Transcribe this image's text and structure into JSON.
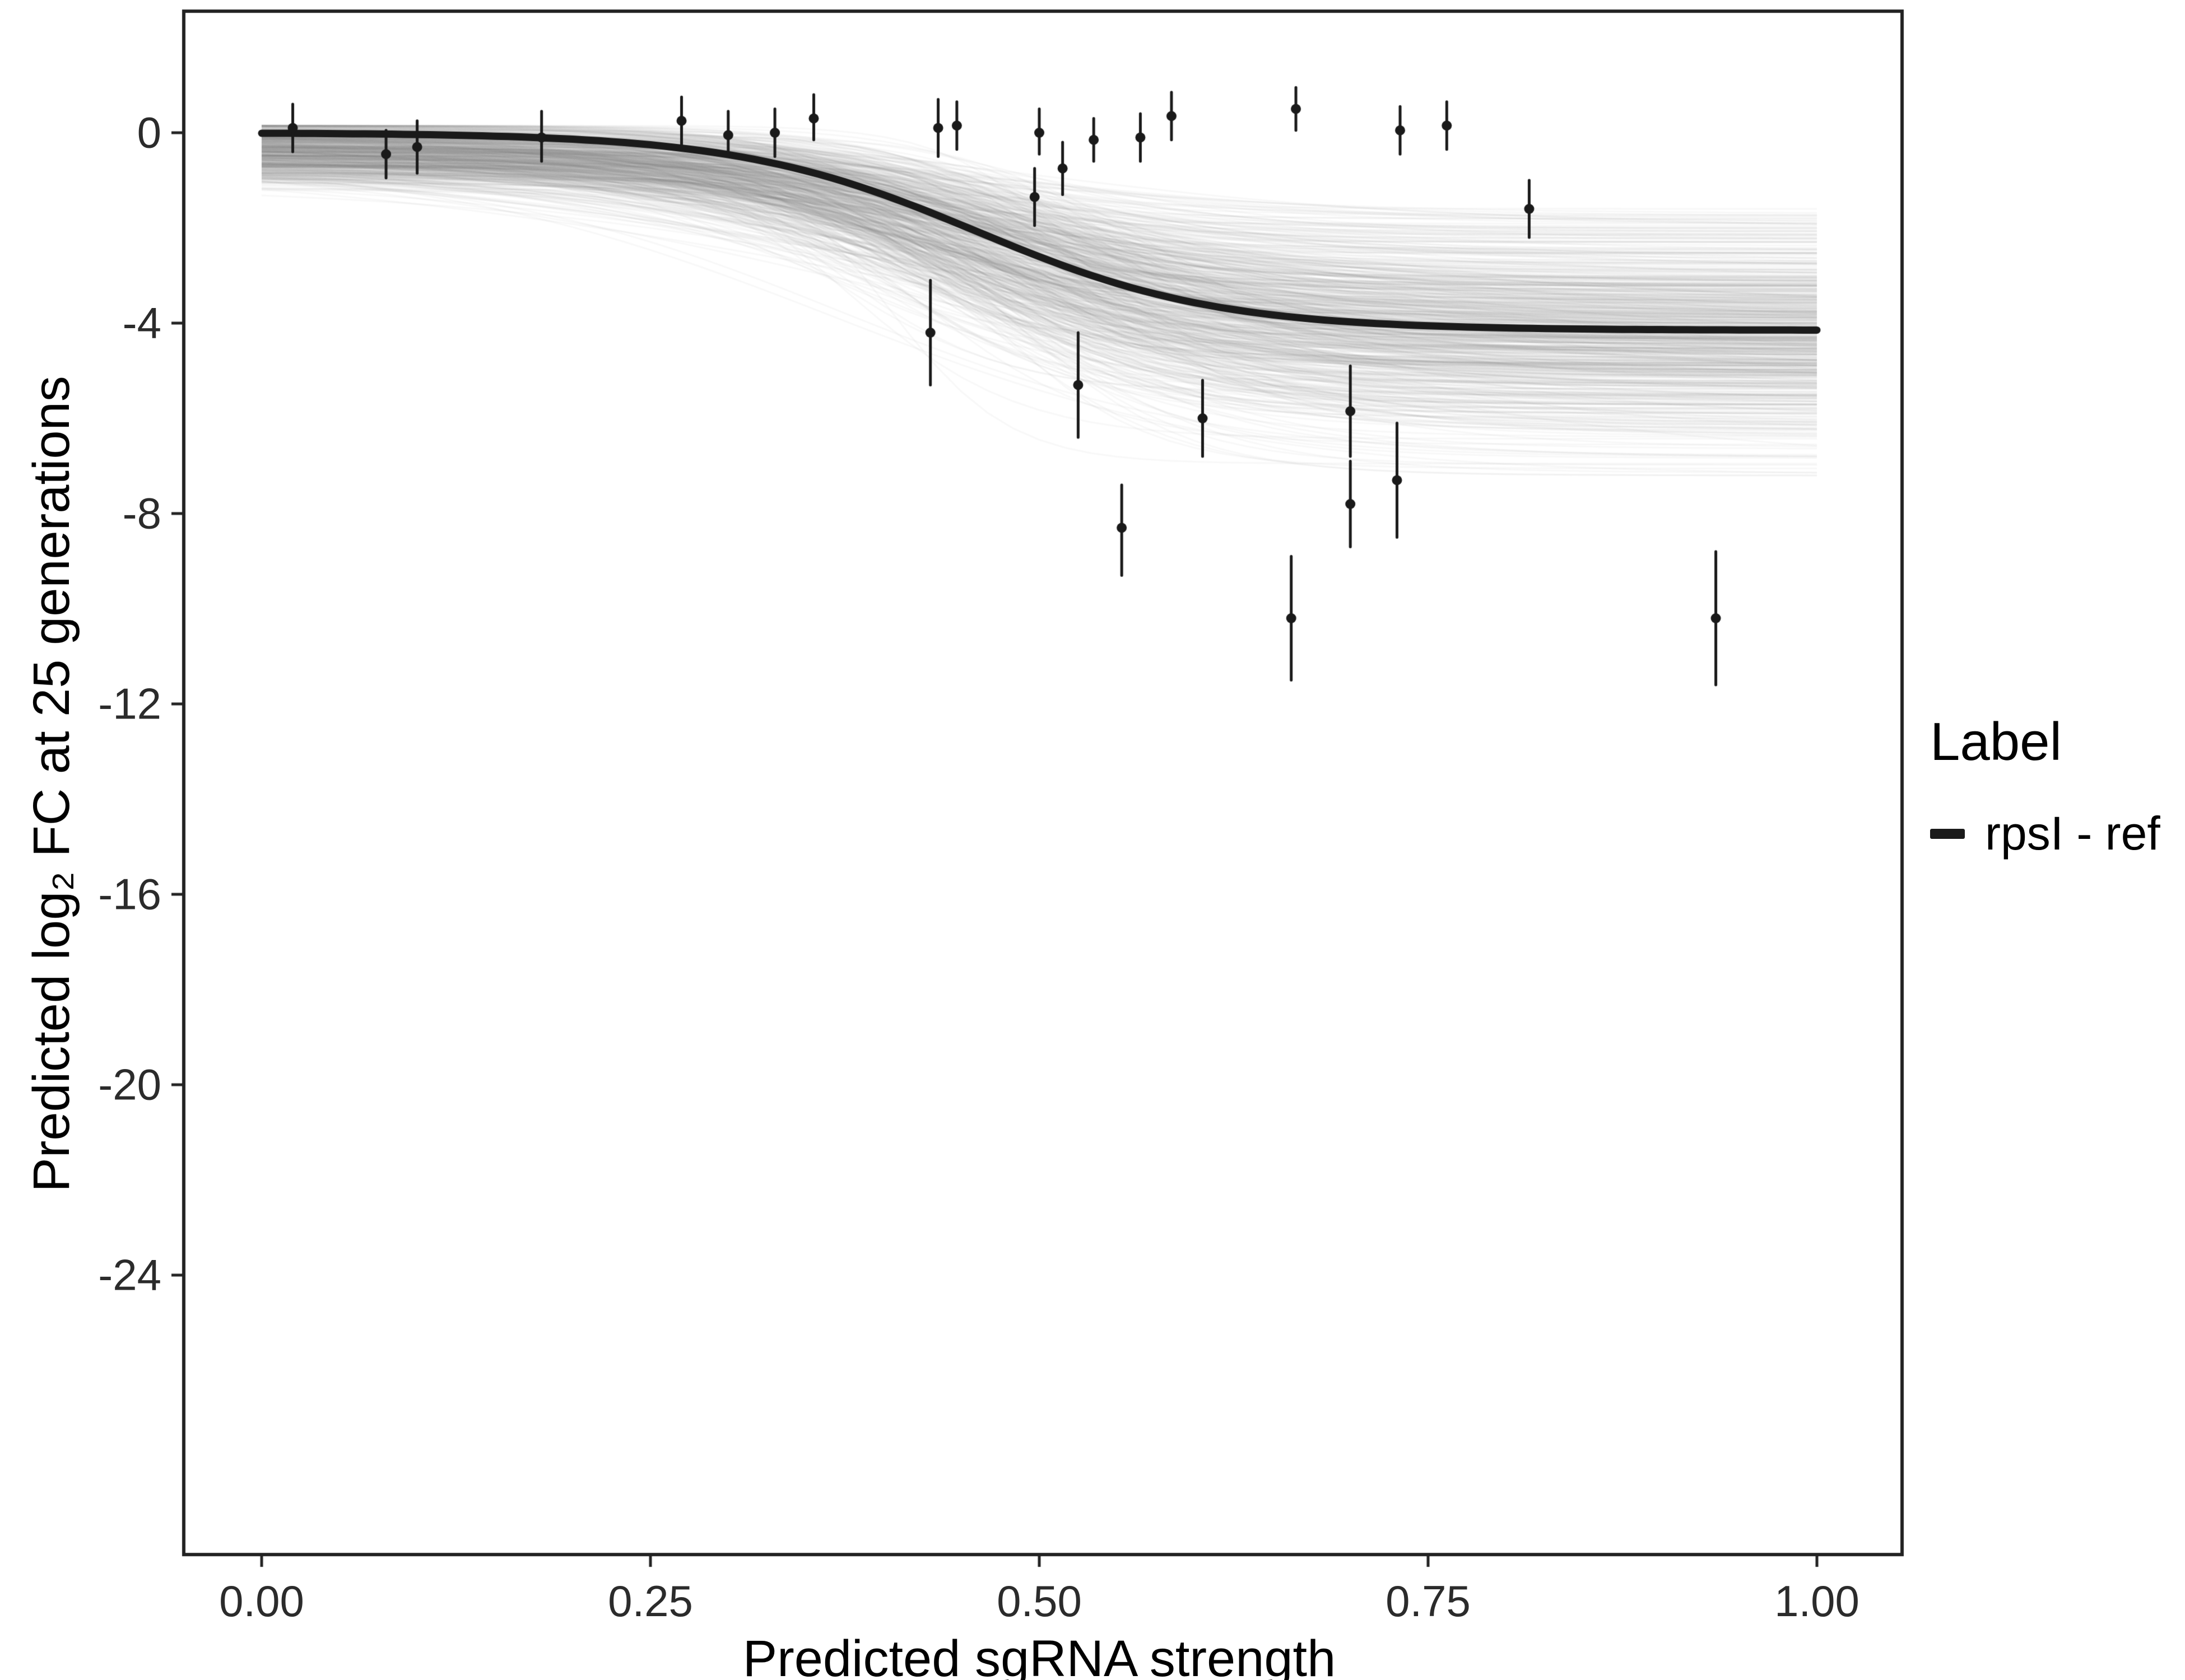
{
  "figure": {
    "background": "#ffffff",
    "panel_border_color": "#222222"
  },
  "axis": {
    "x_title": "Predicted sgRNA strength",
    "y_title": "Predicted  log₂ FC at 25 generations",
    "x_ticks": {
      "labels": [
        "0.00",
        "0.25",
        "0.50",
        "0.75",
        "1.00"
      ],
      "values": [
        0,
        0.25,
        0.5,
        0.75,
        1.0
      ]
    },
    "y_ticks": {
      "labels": [
        "0",
        "-4",
        "-8",
        "-12",
        "-16",
        "-20",
        "-24"
      ],
      "values": [
        0,
        -4,
        -8,
        -12,
        -16,
        -20,
        -24
      ]
    }
  },
  "legend": {
    "title": "Label",
    "items": [
      {
        "label": "rpsI - ref",
        "color": "#1a1a1a"
      }
    ]
  },
  "chart_data": {
    "type": "line",
    "title": "",
    "xlabel": "Predicted sgRNA strength",
    "ylabel": "Predicted log2 FC at 25 generations",
    "xlim": [
      -0.05,
      1.055
    ],
    "ylim": [
      -29.9,
      2.55
    ],
    "grid": false,
    "legend_position": "right",
    "mean_curve": {
      "model": "sigmoid",
      "upper_asymptote": 0.0,
      "lower_asymptote": -4.15,
      "midpoint": 0.46,
      "slope": 13,
      "x_range": [
        0,
        1
      ],
      "color": "#1a1a1a",
      "name": "rpsI - ref"
    },
    "posterior_draws": {
      "description": "gray sigmoid credible draws",
      "n": 650,
      "seed": 42,
      "color": "#787878",
      "alpha": 0.055,
      "upper_asymptote": {
        "mean": -0.35,
        "sd": 0.35,
        "min": -1.6,
        "max": 0.15
      },
      "lower_asymptote": {
        "mean": -4.3,
        "sd": 1.15,
        "min": -7.2,
        "max": -1.6
      },
      "midpoint": {
        "mean": 0.455,
        "sd": 0.045,
        "min": 0.3,
        "max": 0.62
      },
      "slope": {
        "mean": 13,
        "sd": 4.5,
        "min": 5,
        "max": 28
      }
    },
    "points": [
      {
        "x": 0.02,
        "y": 0.1,
        "ymin": -0.4,
        "ymax": 0.6
      },
      {
        "x": 0.08,
        "y": -0.45,
        "ymin": -0.95,
        "ymax": 0.05
      },
      {
        "x": 0.1,
        "y": -0.3,
        "ymin": -0.85,
        "ymax": 0.25
      },
      {
        "x": 0.18,
        "y": -0.1,
        "ymin": -0.6,
        "ymax": 0.45
      },
      {
        "x": 0.27,
        "y": 0.25,
        "ymin": -0.25,
        "ymax": 0.75
      },
      {
        "x": 0.3,
        "y": -0.05,
        "ymin": -0.5,
        "ymax": 0.45
      },
      {
        "x": 0.33,
        "y": 0.0,
        "ymin": -0.5,
        "ymax": 0.5
      },
      {
        "x": 0.355,
        "y": 0.3,
        "ymin": -0.15,
        "ymax": 0.8
      },
      {
        "x": 0.43,
        "y": -4.2,
        "ymin": -5.3,
        "ymax": -3.1
      },
      {
        "x": 0.435,
        "y": 0.1,
        "ymin": -0.5,
        "ymax": 0.7
      },
      {
        "x": 0.447,
        "y": 0.15,
        "ymin": -0.35,
        "ymax": 0.65
      },
      {
        "x": 0.497,
        "y": -1.35,
        "ymin": -1.95,
        "ymax": -0.75
      },
      {
        "x": 0.5,
        "y": 0.0,
        "ymin": -0.45,
        "ymax": 0.5
      },
      {
        "x": 0.515,
        "y": -0.75,
        "ymin": -1.3,
        "ymax": -0.2
      },
      {
        "x": 0.525,
        "y": -5.3,
        "ymin": -6.4,
        "ymax": -4.2
      },
      {
        "x": 0.535,
        "y": -0.15,
        "ymin": -0.6,
        "ymax": 0.3
      },
      {
        "x": 0.553,
        "y": -8.3,
        "ymin": -9.3,
        "ymax": -7.4
      },
      {
        "x": 0.565,
        "y": -0.1,
        "ymin": -0.6,
        "ymax": 0.4
      },
      {
        "x": 0.585,
        "y": 0.35,
        "ymin": -0.15,
        "ymax": 0.85
      },
      {
        "x": 0.605,
        "y": -6.0,
        "ymin": -6.8,
        "ymax": -5.2
      },
      {
        "x": 0.662,
        "y": -10.2,
        "ymin": -11.5,
        "ymax": -8.9
      },
      {
        "x": 0.665,
        "y": 0.5,
        "ymin": 0.05,
        "ymax": 0.95
      },
      {
        "x": 0.7,
        "y": -5.85,
        "ymin": -6.8,
        "ymax": -4.9
      },
      {
        "x": 0.7,
        "y": -7.8,
        "ymin": -8.7,
        "ymax": -6.9
      },
      {
        "x": 0.73,
        "y": -7.3,
        "ymin": -8.5,
        "ymax": -6.1
      },
      {
        "x": 0.732,
        "y": 0.05,
        "ymin": -0.45,
        "ymax": 0.55
      },
      {
        "x": 0.762,
        "y": 0.15,
        "ymin": -0.35,
        "ymax": 0.65
      },
      {
        "x": 0.815,
        "y": -1.6,
        "ymin": -2.2,
        "ymax": -1.0
      },
      {
        "x": 0.935,
        "y": -10.2,
        "ymin": -11.6,
        "ymax": -8.8
      }
    ],
    "point_color": "#1a1a1a"
  }
}
